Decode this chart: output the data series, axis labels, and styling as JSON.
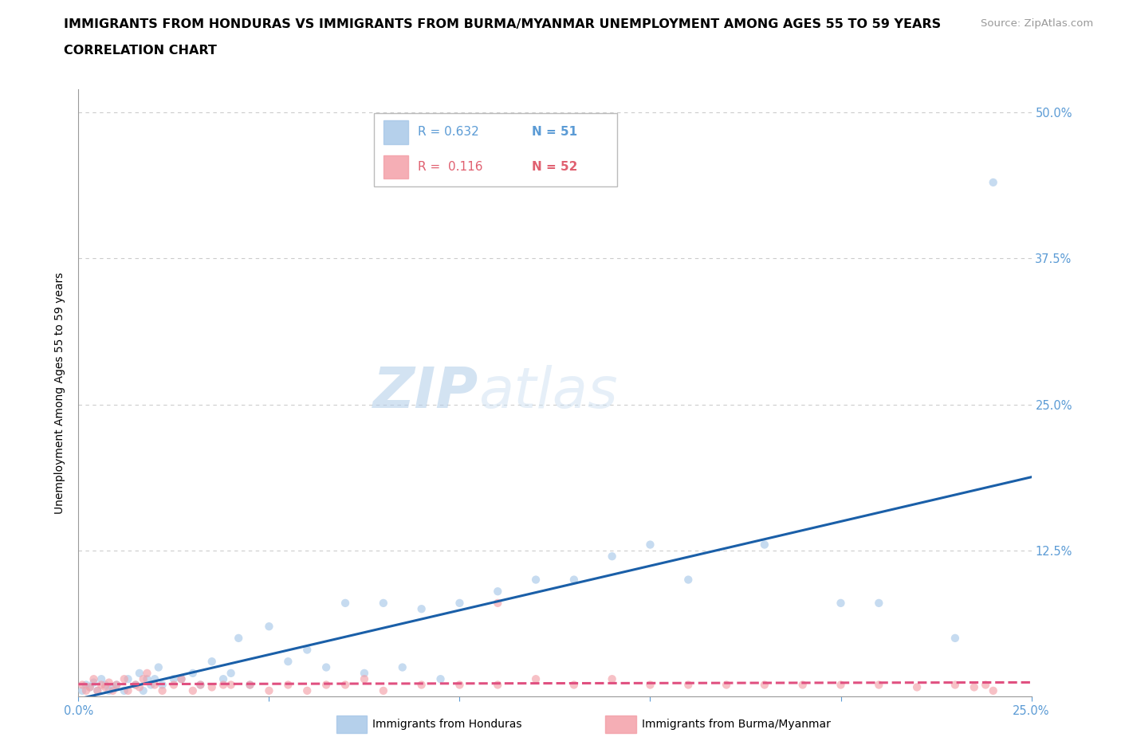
{
  "title_line1": "IMMIGRANTS FROM HONDURAS VS IMMIGRANTS FROM BURMA/MYANMAR UNEMPLOYMENT AMONG AGES 55 TO 59 YEARS",
  "title_line2": "CORRELATION CHART",
  "source_text": "Source: ZipAtlas.com",
  "ylabel": "Unemployment Among Ages 55 to 59 years",
  "xlim": [
    0.0,
    0.25
  ],
  "ylim": [
    0.0,
    0.52
  ],
  "xticks": [
    0.0,
    0.05,
    0.1,
    0.15,
    0.2,
    0.25
  ],
  "xticklabels": [
    "0.0%",
    "",
    "",
    "",
    "",
    "25.0%"
  ],
  "yticks": [
    0.0,
    0.125,
    0.25,
    0.375,
    0.5
  ],
  "yticklabels": [
    "",
    "12.5%",
    "25.0%",
    "37.5%",
    "50.0%"
  ],
  "grid_color": "#cccccc",
  "bg_color": "#ffffff",
  "color_honduras": "#a8c8e8",
  "color_burma": "#f4a0a8",
  "color_line_honduras": "#1a5fa8",
  "color_line_burma": "#e05080",
  "scatter_size": 55,
  "scatter_alpha": 0.65,
  "line_width": 2.2,
  "honduras_x": [
    0.001,
    0.002,
    0.003,
    0.004,
    0.005,
    0.006,
    0.007,
    0.008,
    0.009,
    0.01,
    0.012,
    0.013,
    0.015,
    0.016,
    0.017,
    0.018,
    0.019,
    0.02,
    0.021,
    0.022,
    0.025,
    0.027,
    0.03,
    0.032,
    0.035,
    0.038,
    0.04,
    0.042,
    0.045,
    0.05,
    0.055,
    0.06,
    0.065,
    0.07,
    0.075,
    0.08,
    0.085,
    0.09,
    0.095,
    0.1,
    0.11,
    0.12,
    0.13,
    0.14,
    0.15,
    0.16,
    0.18,
    0.2,
    0.21,
    0.23,
    0.24
  ],
  "honduras_y": [
    0.005,
    0.01,
    0.008,
    0.012,
    0.005,
    0.015,
    0.01,
    0.005,
    0.008,
    0.01,
    0.005,
    0.015,
    0.01,
    0.02,
    0.005,
    0.015,
    0.01,
    0.015,
    0.025,
    0.01,
    0.015,
    0.015,
    0.02,
    0.01,
    0.03,
    0.015,
    0.02,
    0.05,
    0.01,
    0.06,
    0.03,
    0.04,
    0.025,
    0.08,
    0.02,
    0.08,
    0.025,
    0.075,
    0.015,
    0.08,
    0.09,
    0.1,
    0.1,
    0.12,
    0.13,
    0.1,
    0.13,
    0.08,
    0.08,
    0.05,
    0.44
  ],
  "burma_x": [
    0.001,
    0.002,
    0.003,
    0.004,
    0.005,
    0.006,
    0.007,
    0.008,
    0.009,
    0.01,
    0.012,
    0.013,
    0.015,
    0.016,
    0.017,
    0.018,
    0.02,
    0.022,
    0.025,
    0.027,
    0.03,
    0.032,
    0.035,
    0.038,
    0.04,
    0.045,
    0.05,
    0.055,
    0.06,
    0.065,
    0.07,
    0.075,
    0.08,
    0.09,
    0.1,
    0.11,
    0.12,
    0.13,
    0.14,
    0.15,
    0.16,
    0.17,
    0.18,
    0.19,
    0.2,
    0.21,
    0.22,
    0.23,
    0.235,
    0.238,
    0.24,
    0.11
  ],
  "burma_y": [
    0.01,
    0.005,
    0.008,
    0.015,
    0.005,
    0.01,
    0.008,
    0.012,
    0.005,
    0.01,
    0.015,
    0.005,
    0.01,
    0.008,
    0.015,
    0.02,
    0.01,
    0.005,
    0.01,
    0.015,
    0.005,
    0.01,
    0.008,
    0.01,
    0.01,
    0.01,
    0.005,
    0.01,
    0.005,
    0.01,
    0.01,
    0.015,
    0.005,
    0.01,
    0.01,
    0.01,
    0.015,
    0.01,
    0.015,
    0.01,
    0.01,
    0.01,
    0.01,
    0.01,
    0.01,
    0.01,
    0.008,
    0.01,
    0.008,
    0.01,
    0.005,
    0.08
  ],
  "title_fontsize": 11.5,
  "subtitle_fontsize": 11.5,
  "axis_label_fontsize": 10,
  "tick_fontsize": 10.5,
  "source_fontsize": 9.5,
  "watermark_zip": "ZIP",
  "watermark_atlas": "atlas",
  "watermark_zip_color": "#b0cce8",
  "watermark_atlas_color": "#c8ddf0"
}
